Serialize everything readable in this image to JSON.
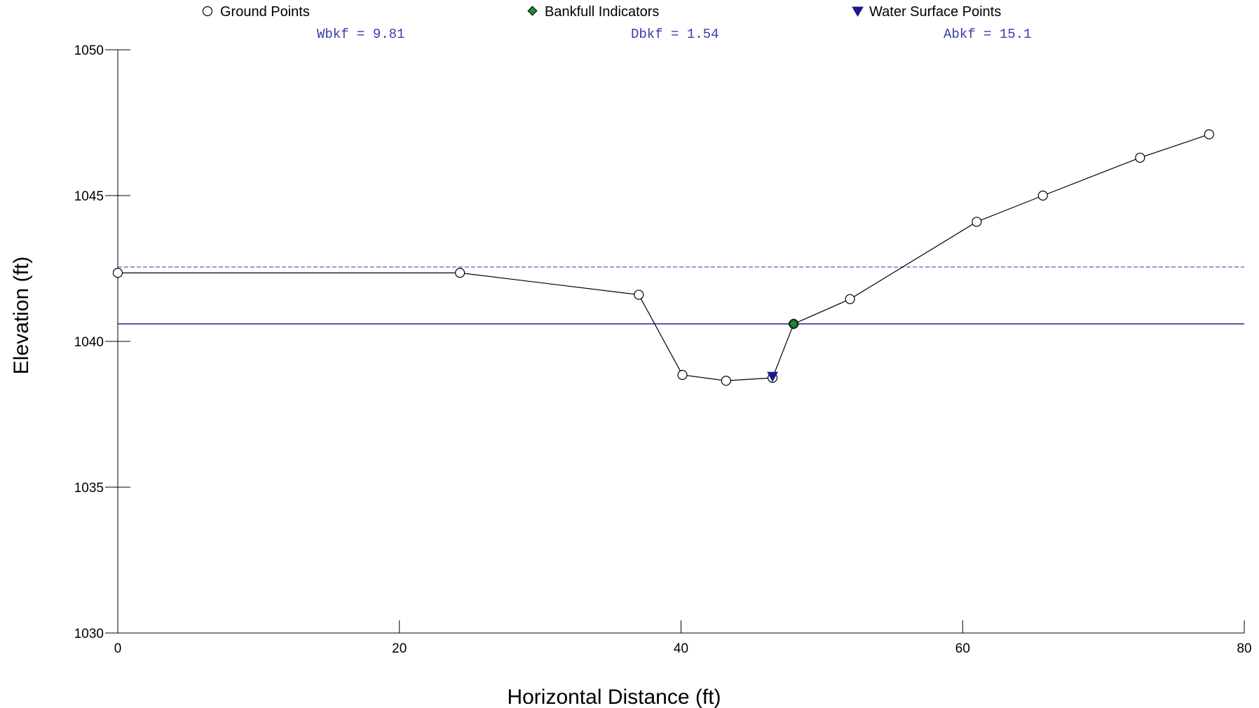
{
  "chart_data": {
    "type": "line",
    "xlabel": "Horizontal Distance (ft)",
    "ylabel": "Elevation (ft)",
    "xlim": [
      0,
      80
    ],
    "ylim": [
      1030,
      1050
    ],
    "x_ticks": [
      0,
      20,
      40,
      60,
      80
    ],
    "y_ticks": [
      1030,
      1035,
      1040,
      1045,
      1050
    ],
    "legend": {
      "placement": "top",
      "entries": [
        {
          "name": "Ground Points",
          "marker": "open-circle"
        },
        {
          "name": "Bankfull Indicators",
          "marker": "green-diamond"
        },
        {
          "name": "Water Surface Points",
          "marker": "blue-triangle-down"
        }
      ]
    },
    "annotations": [
      "Wbkf = 9.81",
      "Dbkf = 1.54",
      "Abkf = 15.1"
    ],
    "series": [
      {
        "name": "Ground Points",
        "x": [
          0,
          24.3,
          37.0,
          40.1,
          43.2,
          46.5,
          48.0,
          52.0,
          61.0,
          65.7,
          72.6,
          77.5
        ],
        "y": [
          1042.35,
          1042.35,
          1041.6,
          1038.85,
          1038.65,
          1038.75,
          1040.6,
          1041.45,
          1044.1,
          1045.0,
          1046.3,
          1047.1
        ]
      },
      {
        "name": "Bankfull Indicators",
        "x": [
          48.0
        ],
        "y": [
          1040.6
        ]
      },
      {
        "name": "Water Surface Points",
        "x": [
          46.5
        ],
        "y": [
          1038.75
        ]
      }
    ],
    "reference_lines": [
      {
        "kind": "bankfull-elevation",
        "y": 1040.6,
        "style": "solid",
        "color": "#1e1e9c"
      },
      {
        "kind": "flood-prone-elevation",
        "y": 1042.55,
        "style": "dashed",
        "color": "#4a4ab0"
      }
    ],
    "colors": {
      "ground": "#000000",
      "bankfull": "#1f8a2a",
      "water_surface": "#1a1a8c",
      "annotation": "#3b3bb0"
    }
  }
}
